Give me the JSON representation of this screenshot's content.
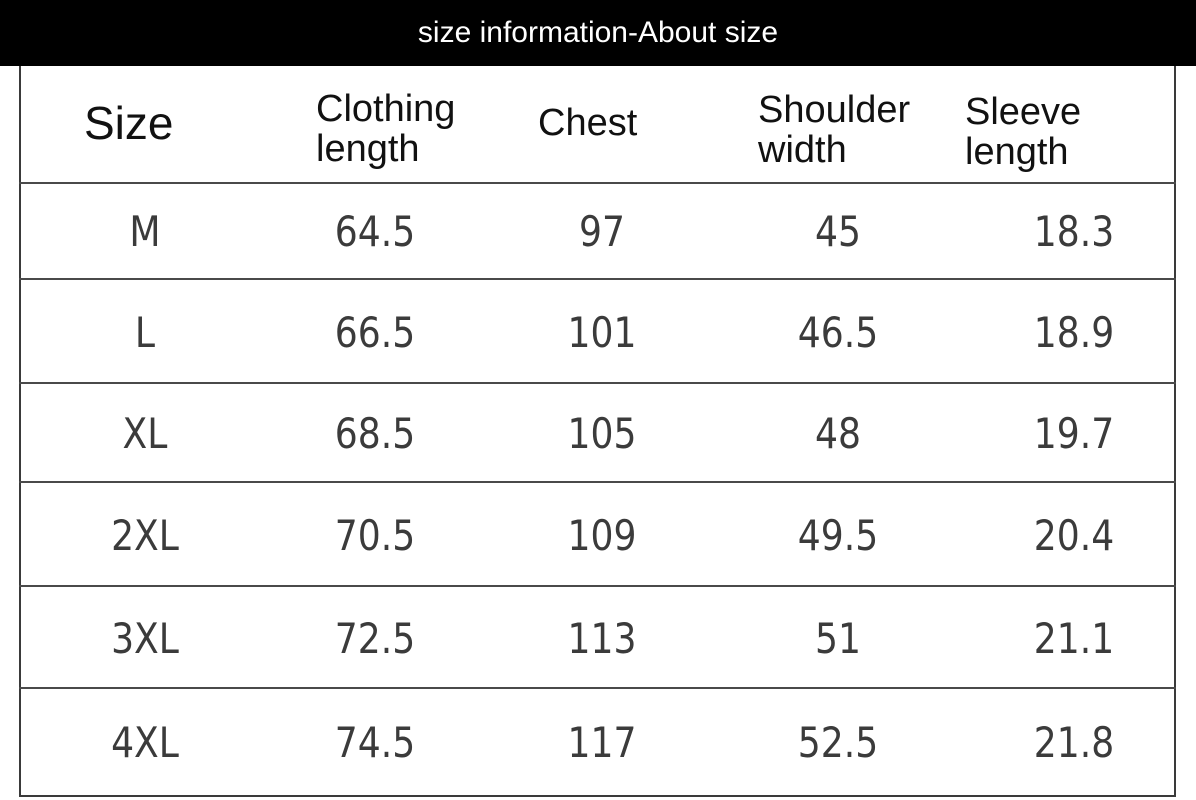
{
  "title": "size information-About size",
  "table": {
    "headers": {
      "size": "Size",
      "clothing_length": [
        "Clothing",
        "length"
      ],
      "chest": "Chest",
      "shoulder_width": [
        "Shoulder",
        "width"
      ],
      "sleeve_length": [
        "Sleeve",
        "length"
      ]
    },
    "rows": [
      {
        "size": "M",
        "clothing_length": "64.5",
        "chest": "97",
        "shoulder_width": "45",
        "sleeve_length": "18.3"
      },
      {
        "size": "L",
        "clothing_length": "66.5",
        "chest": "101",
        "shoulder_width": "46.5",
        "sleeve_length": "18.9"
      },
      {
        "size": "XL",
        "clothing_length": "68.5",
        "chest": "105",
        "shoulder_width": "48",
        "sleeve_length": "19.7"
      },
      {
        "size": "2XL",
        "clothing_length": "70.5",
        "chest": "109",
        "shoulder_width": "49.5",
        "sleeve_length": "20.4"
      },
      {
        "size": "3XL",
        "clothing_length": "72.5",
        "chest": "113",
        "shoulder_width": "51",
        "sleeve_length": "21.1"
      },
      {
        "size": "4XL",
        "clothing_length": "74.5",
        "chest": "117",
        "shoulder_width": "52.5",
        "sleeve_length": "21.8"
      }
    ]
  }
}
